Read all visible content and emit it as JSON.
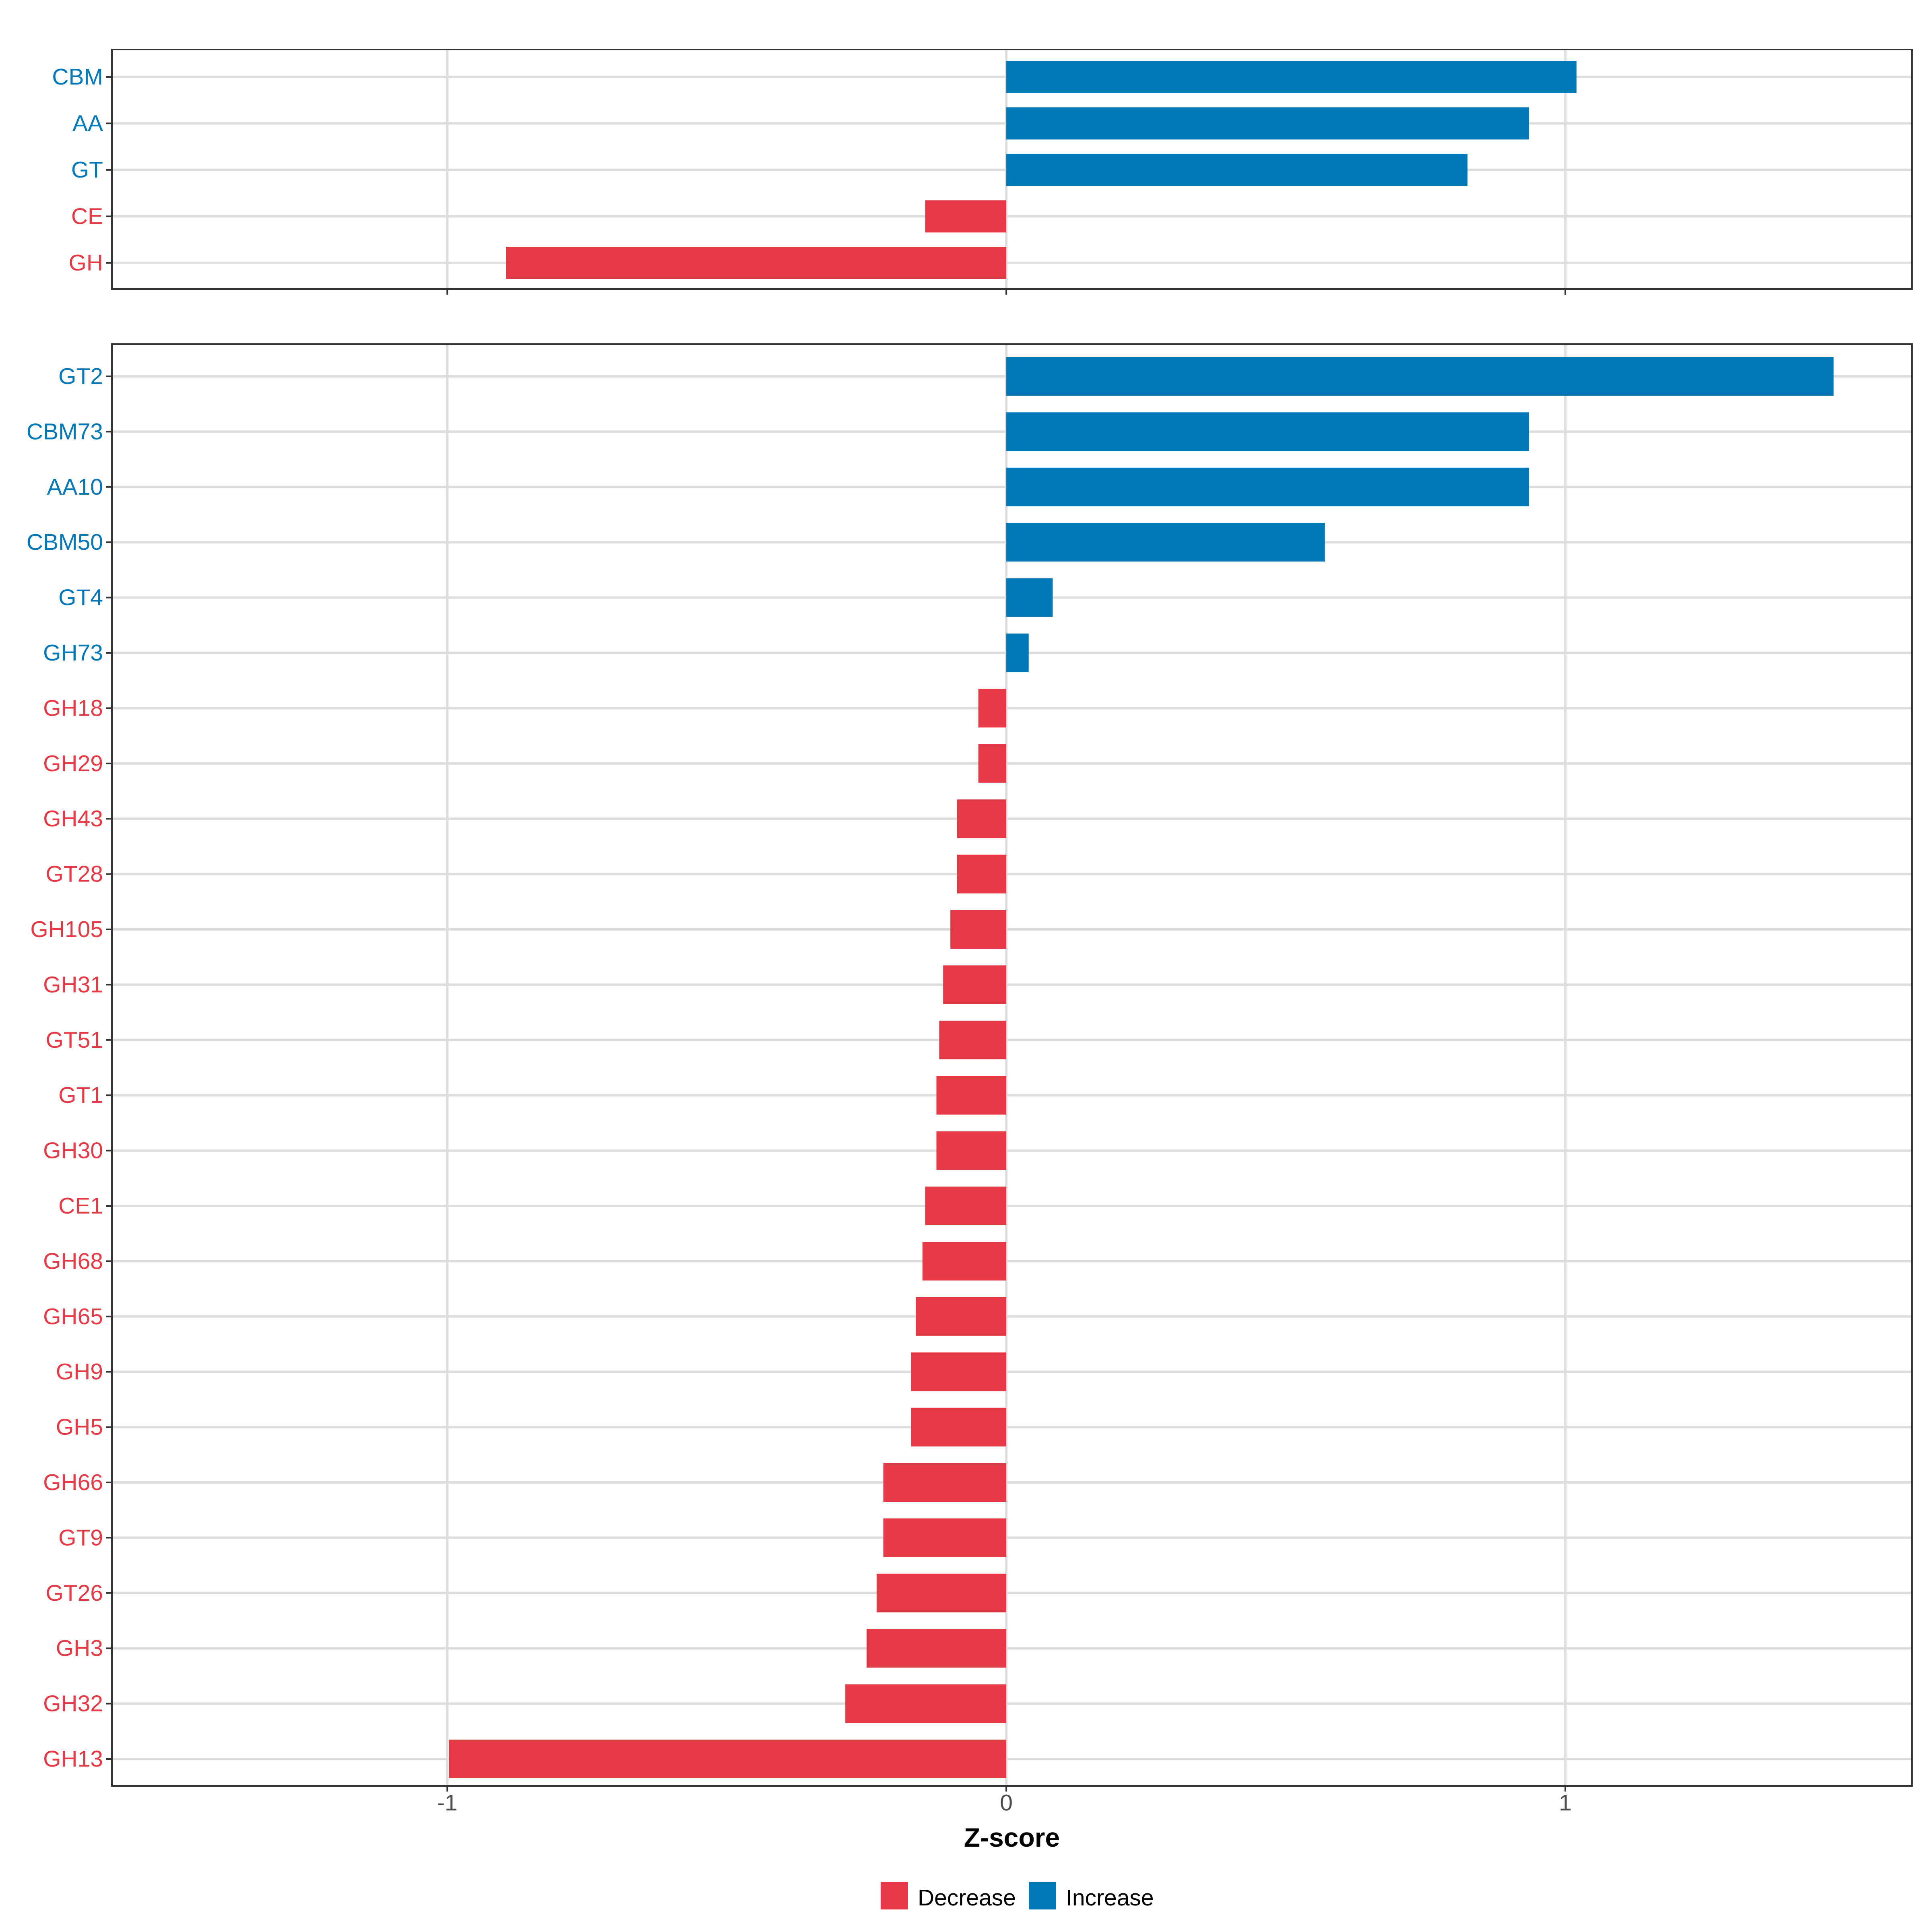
{
  "chart_data": [
    {
      "type": "bar",
      "orientation": "horizontal",
      "panel": "top",
      "categories": [
        "CBM",
        "AA",
        "GT",
        "CE",
        "GH"
      ],
      "values": [
        1.02,
        0.935,
        0.825,
        -0.145,
        -0.895
      ],
      "groups": [
        "Increase",
        "Increase",
        "Increase",
        "Decrease",
        "Decrease"
      ],
      "xlim": [
        -1.6,
        1.62
      ],
      "grid": true
    },
    {
      "type": "bar",
      "orientation": "horizontal",
      "panel": "bottom",
      "categories": [
        "GT2",
        "CBM73",
        "AA10",
        "CBM50",
        "GT4",
        "GH73",
        "GH18",
        "GH29",
        "GH43",
        "GT28",
        "GH105",
        "GH31",
        "GT51",
        "GT1",
        "GH30",
        "CE1",
        "GH68",
        "GH65",
        "GH9",
        "GH5",
        "GH66",
        "GT9",
        "GT26",
        "GH3",
        "GH32",
        "GH13"
      ],
      "values": [
        1.48,
        0.935,
        0.935,
        0.57,
        0.083,
        0.04,
        -0.05,
        -0.05,
        -0.088,
        -0.088,
        -0.1,
        -0.113,
        -0.12,
        -0.125,
        -0.125,
        -0.145,
        -0.15,
        -0.162,
        -0.17,
        -0.17,
        -0.22,
        -0.22,
        -0.232,
        -0.25,
        -0.288,
        -0.997
      ],
      "groups": [
        "Increase",
        "Increase",
        "Increase",
        "Increase",
        "Increase",
        "Increase",
        "Decrease",
        "Decrease",
        "Decrease",
        "Decrease",
        "Decrease",
        "Decrease",
        "Decrease",
        "Decrease",
        "Decrease",
        "Decrease",
        "Decrease",
        "Decrease",
        "Decrease",
        "Decrease",
        "Decrease",
        "Decrease",
        "Decrease",
        "Decrease",
        "Decrease",
        "Decrease"
      ],
      "xlim": [
        -1.6,
        1.62
      ],
      "xticks": [
        -1,
        0,
        1
      ],
      "xtick_labels": [
        "-1",
        "0",
        "1"
      ],
      "xlabel": "Z-score",
      "grid": true
    }
  ],
  "legend": {
    "placement": "bottom",
    "items": [
      {
        "label": "Decrease",
        "color": "#E63946"
      },
      {
        "label": "Increase",
        "color": "#0077B6"
      }
    ]
  }
}
